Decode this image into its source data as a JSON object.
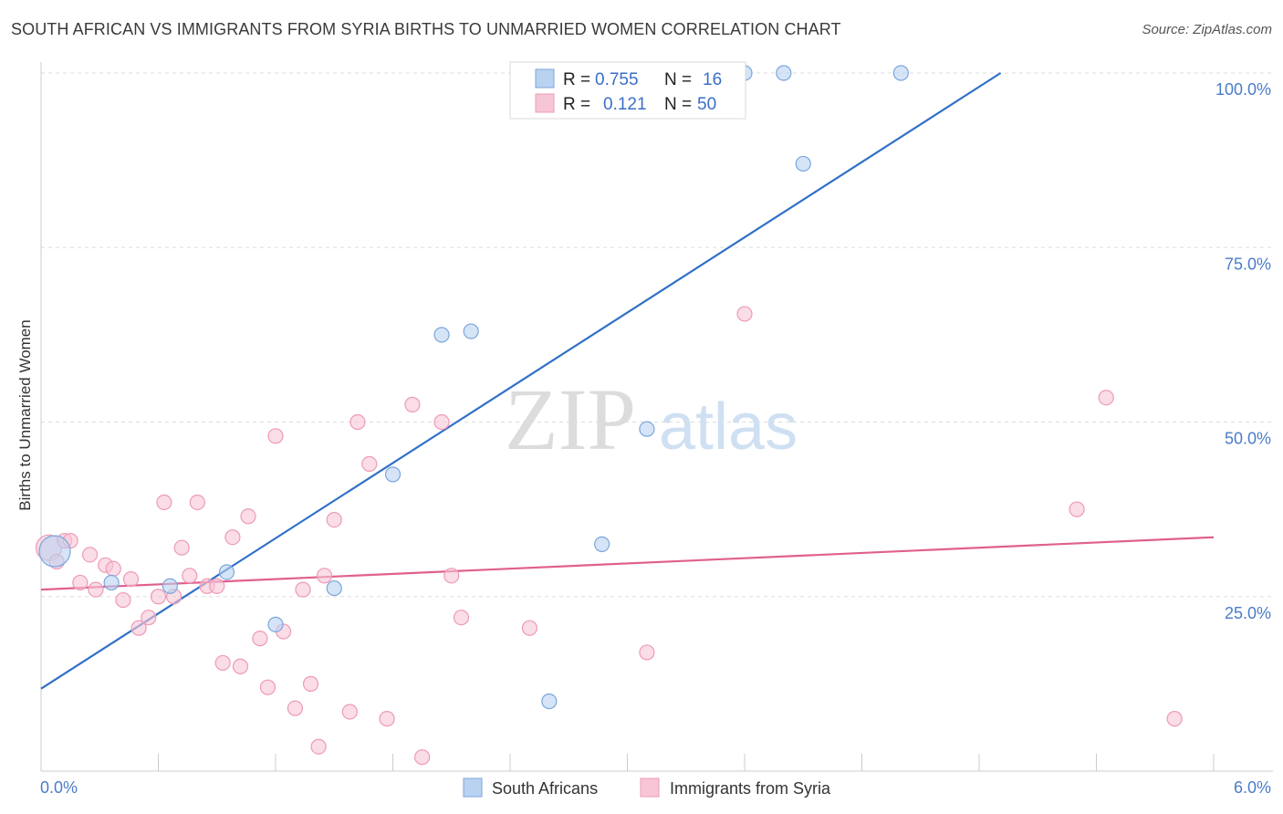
{
  "title": "SOUTH AFRICAN VS IMMIGRANTS FROM SYRIA BIRTHS TO UNMARRIED WOMEN CORRELATION CHART",
  "source": "Source: ZipAtlas.com",
  "watermark": {
    "zip": "ZIP",
    "atlas": "atlas"
  },
  "colors": {
    "blue": "#3070c8",
    "blue_fill": "#b9d2f0",
    "blue_stroke": "#7aa6dc",
    "pink": "#e0608e",
    "pink_fill": "#f7c6d6",
    "pink_stroke": "#ee9ab6",
    "axis_text": "#4a7cc9",
    "grid": "#dddddd"
  },
  "chart_data": {
    "type": "scatter",
    "xlabel": "",
    "ylabel": "Births to Unmarried Women",
    "xlim": [
      0,
      6
    ],
    "ylim": [
      0,
      100
    ],
    "x_tick_labels": [
      "0.0%",
      "6.0%"
    ],
    "y_tick_labels": [
      "25.0%",
      "50.0%",
      "75.0%",
      "100.0%"
    ],
    "y_ticks": [
      25,
      50,
      75,
      100
    ],
    "grid": true,
    "legend_placement": "top-center",
    "series": [
      {
        "name": "South Africans",
        "color": "blue",
        "R": "0.755",
        "N": "16",
        "r_label": "R =",
        "n_label": "N =",
        "trend": [
          [
            0,
            11.8
          ],
          [
            4.91,
            100
          ]
        ],
        "points": [
          [
            0.07,
            31.5
          ],
          [
            0.36,
            27.0
          ],
          [
            0.66,
            26.5
          ],
          [
            0.95,
            28.5
          ],
          [
            1.2,
            21.0
          ],
          [
            1.5,
            26.2
          ],
          [
            1.8,
            42.5
          ],
          [
            2.05,
            62.5
          ],
          [
            2.2,
            63.0
          ],
          [
            2.6,
            10.0
          ],
          [
            2.87,
            32.5
          ],
          [
            3.1,
            49.0
          ],
          [
            3.6,
            100.0
          ],
          [
            3.8,
            100.0
          ],
          [
            3.9,
            87.0
          ],
          [
            4.4,
            100.0
          ]
        ]
      },
      {
        "name": "Immigrants from Syria",
        "color": "pink",
        "R": "0.121",
        "N": "50",
        "r_label": "R =",
        "n_label": "N =",
        "trend": [
          [
            0,
            26.0
          ],
          [
            6,
            33.5
          ]
        ],
        "points": [
          [
            0.04,
            32.0
          ],
          [
            0.08,
            30.0
          ],
          [
            0.12,
            33.0
          ],
          [
            0.15,
            33.0
          ],
          [
            0.2,
            27.0
          ],
          [
            0.25,
            31.0
          ],
          [
            0.28,
            26.0
          ],
          [
            0.33,
            29.5
          ],
          [
            0.37,
            29.0
          ],
          [
            0.42,
            24.5
          ],
          [
            0.46,
            27.5
          ],
          [
            0.5,
            20.5
          ],
          [
            0.55,
            22.0
          ],
          [
            0.6,
            25.0
          ],
          [
            0.63,
            38.5
          ],
          [
            0.68,
            25.0
          ],
          [
            0.72,
            32.0
          ],
          [
            0.76,
            28.0
          ],
          [
            0.8,
            38.5
          ],
          [
            0.85,
            26.5
          ],
          [
            0.9,
            26.5
          ],
          [
            0.93,
            15.5
          ],
          [
            0.98,
            33.5
          ],
          [
            1.02,
            15.0
          ],
          [
            1.06,
            36.5
          ],
          [
            1.12,
            19.0
          ],
          [
            1.16,
            12.0
          ],
          [
            1.2,
            48.0
          ],
          [
            1.24,
            20.0
          ],
          [
            1.3,
            9.0
          ],
          [
            1.34,
            26.0
          ],
          [
            1.38,
            12.5
          ],
          [
            1.42,
            3.5
          ],
          [
            1.45,
            28.0
          ],
          [
            1.5,
            36.0
          ],
          [
            1.58,
            8.5
          ],
          [
            1.62,
            50.0
          ],
          [
            1.68,
            44.0
          ],
          [
            1.77,
            7.5
          ],
          [
            1.9,
            52.5
          ],
          [
            1.95,
            2.0
          ],
          [
            2.05,
            50.0
          ],
          [
            2.1,
            28.0
          ],
          [
            2.15,
            22.0
          ],
          [
            2.5,
            20.5
          ],
          [
            3.1,
            17.0
          ],
          [
            3.6,
            65.5
          ],
          [
            5.3,
            37.5
          ],
          [
            5.45,
            53.5
          ],
          [
            5.8,
            7.5
          ]
        ]
      }
    ]
  }
}
